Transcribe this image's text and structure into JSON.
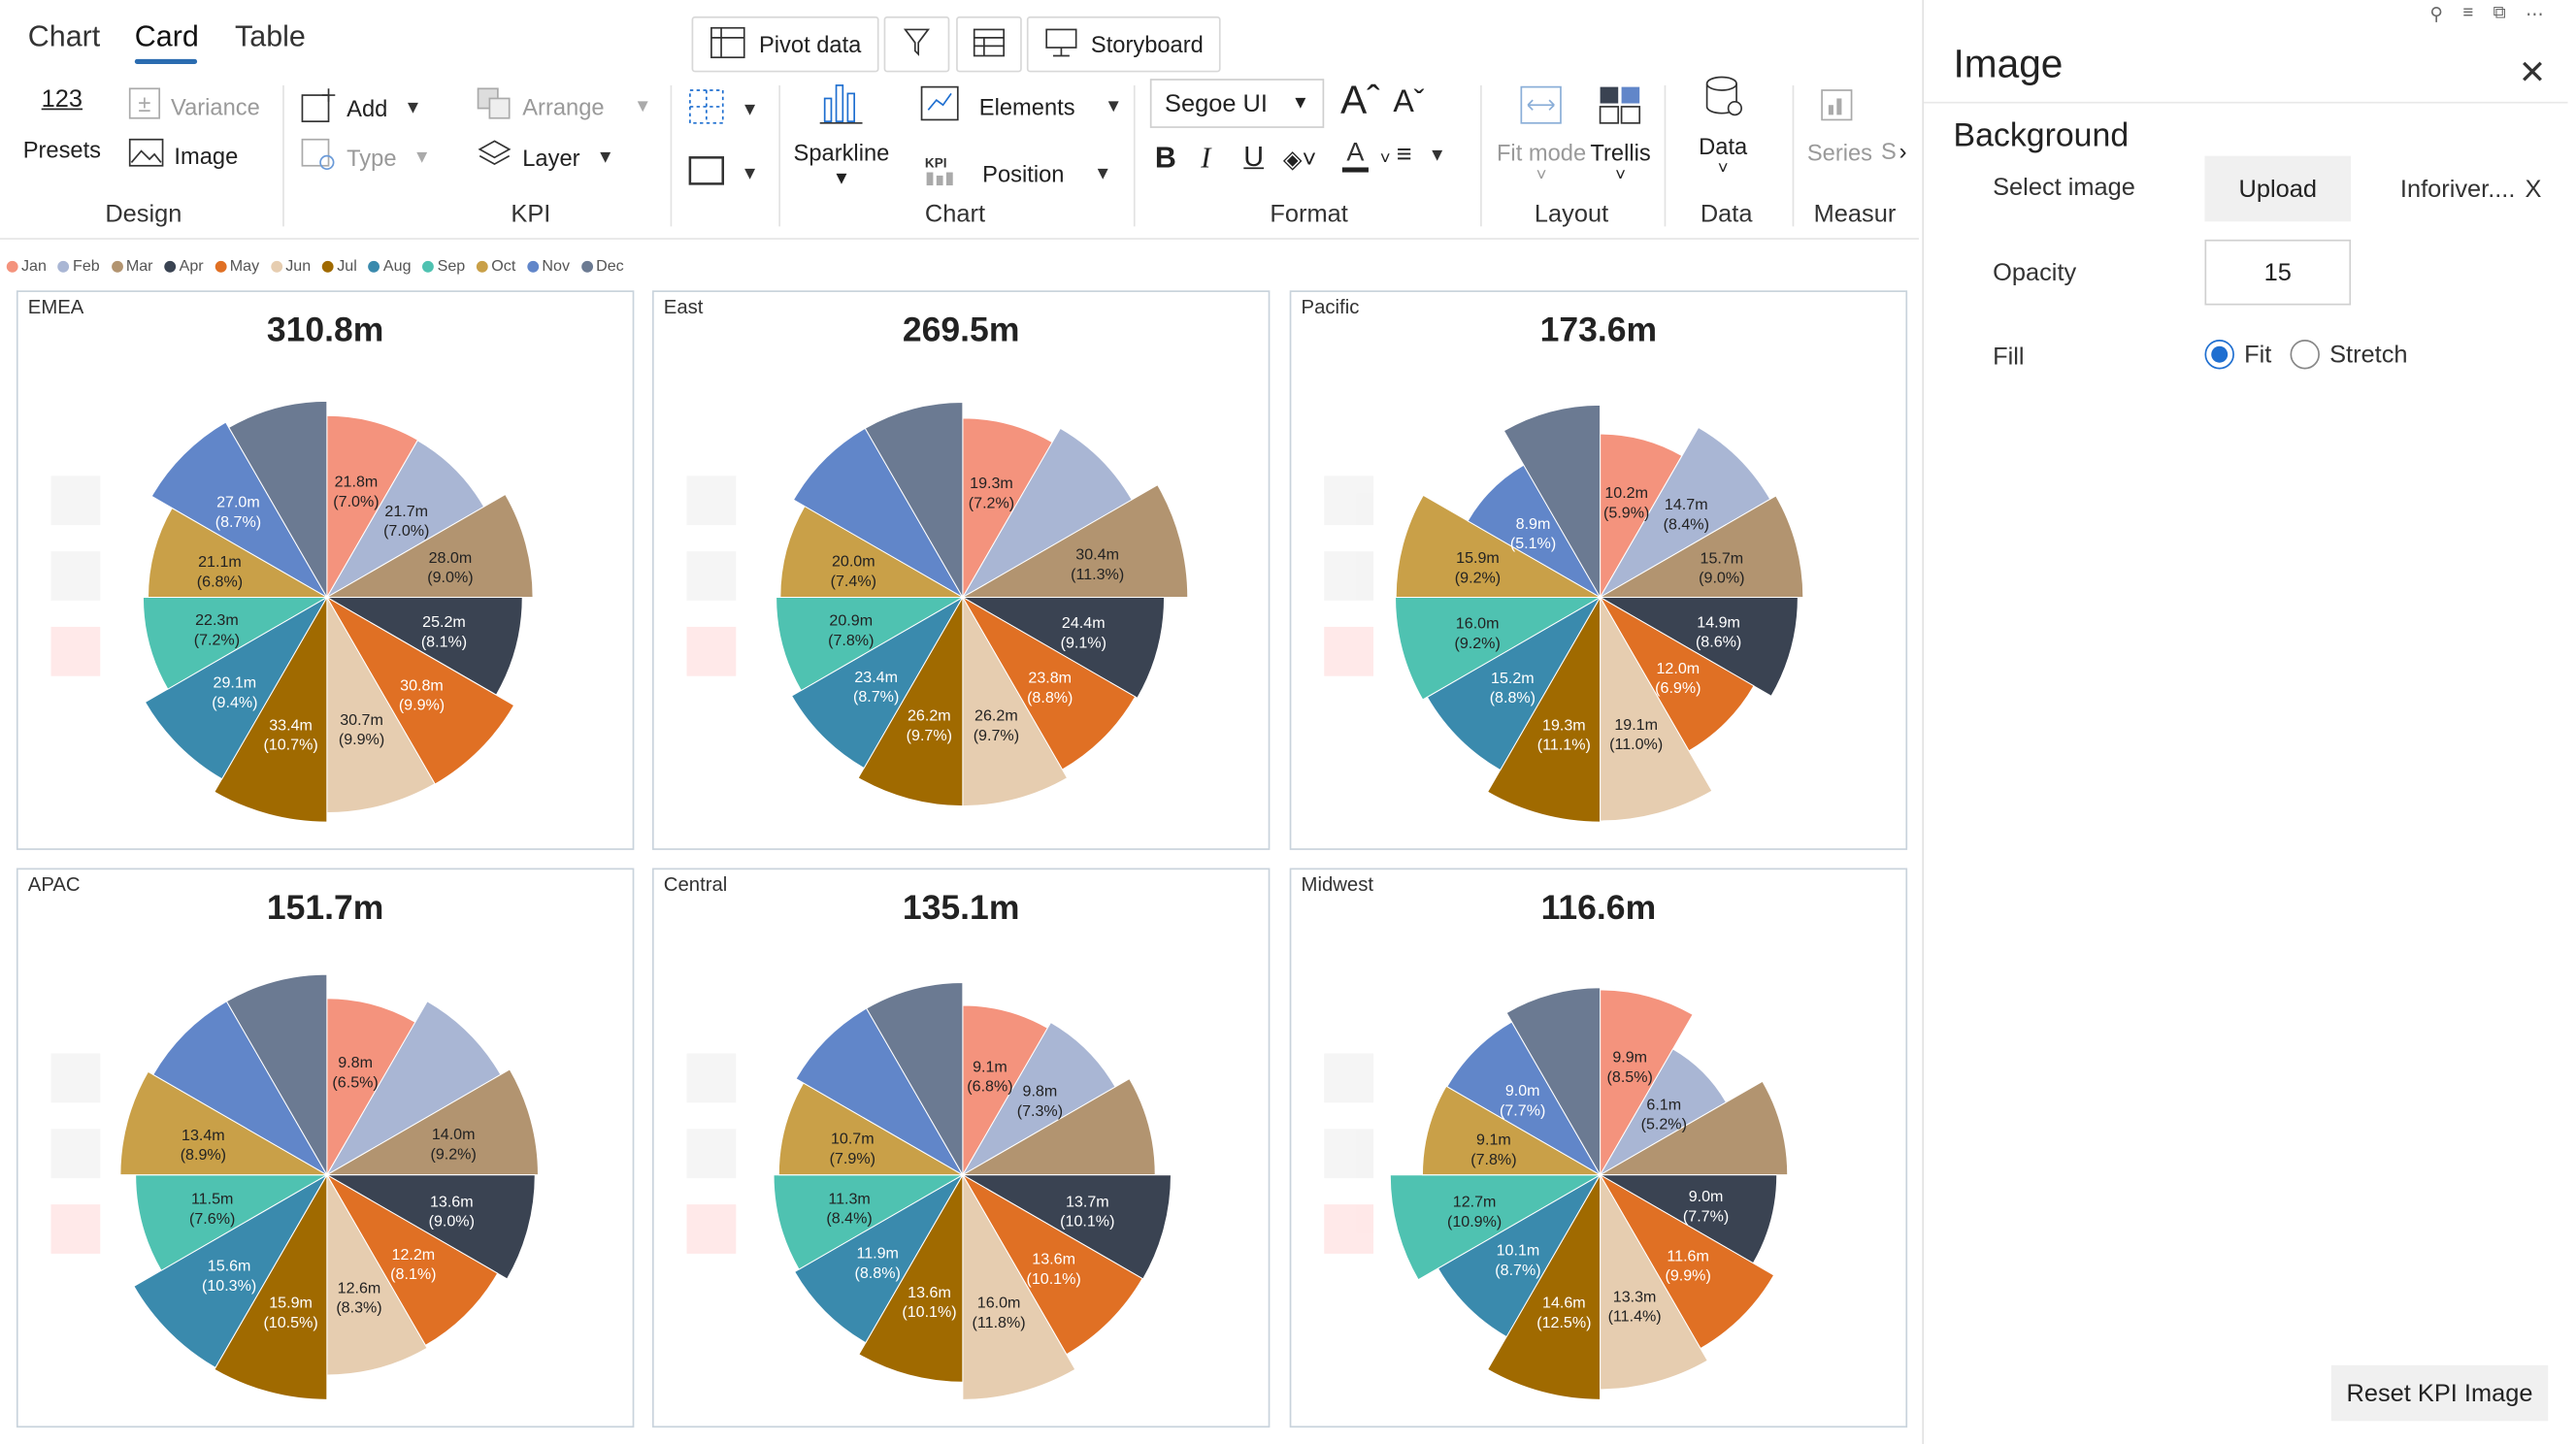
{
  "tabs": [
    {
      "label": "Chart",
      "active": false
    },
    {
      "label": "Card",
      "active": true
    },
    {
      "label": "Table",
      "active": false
    }
  ],
  "toolbar": {
    "pivot_data": "Pivot data",
    "storyboard": "Storyboard",
    "presets_number": "123",
    "presets": "Presets",
    "variance": "Variance",
    "image": "Image",
    "add": "Add",
    "type": "Type",
    "arrange": "Arrange",
    "layer": "Layer",
    "sparkline": "Sparkline",
    "kpi_tag": "KPI",
    "elements": "Elements",
    "position": "Position",
    "font": "Segoe UI",
    "fit_mode": "Fit mode",
    "trellis": "Trellis",
    "data": "Data",
    "series": "Series",
    "s": "S",
    "groups": {
      "design": "Design",
      "kpi": "KPI",
      "chart": "Chart",
      "format": "Format",
      "layout": "Layout",
      "data": "Data",
      "measure": "Measur"
    }
  },
  "legend": [
    "Jan",
    "Feb",
    "Mar",
    "Apr",
    "May",
    "Jun",
    "Jul",
    "Aug",
    "Sep",
    "Oct",
    "Nov",
    "Dec"
  ],
  "colors": [
    "#f4937d",
    "#a9b6d4",
    "#b29470",
    "#3a4352",
    "#e07024",
    "#e6cdb0",
    "#a06a00",
    "#3a8aad",
    "#4fc2b1",
    "#c9a048",
    "#6186c9",
    "#6b7a92"
  ],
  "icons": [
    "pivot-icon",
    "filter-icon",
    "table-icon",
    "storyboard-icon",
    "variance-icon",
    "image-icon",
    "add-icon",
    "type-icon",
    "arrange-icon",
    "layer-icon",
    "sparkline-icon",
    "elements-icon",
    "position-icon",
    "bold-icon",
    "italic-icon",
    "underline-icon",
    "fill-icon",
    "font-color-icon",
    "align-icon",
    "fit-mode-icon",
    "trellis-icon",
    "data-icon",
    "series-icon",
    "close-icon",
    "pin-icon",
    "more-icon"
  ],
  "chart_data": [
    {
      "type": "pie",
      "region": "EMEA",
      "total": "310.8m",
      "categories": [
        "Jan",
        "Feb",
        "Mar",
        "Apr",
        "May",
        "Jun",
        "Jul",
        "Aug",
        "Sep",
        "Oct",
        "Nov",
        "Dec"
      ],
      "values": [
        21.8,
        21.7,
        28.0,
        25.2,
        30.8,
        30.7,
        33.4,
        29.1,
        22.3,
        21.1,
        27.0,
        null
      ],
      "value_labels": [
        "21.8m",
        "21.7m",
        "28.0m",
        "25.2m",
        "30.8m",
        "30.7m",
        "33.4m",
        "29.1m",
        "22.3m",
        "21.1m",
        "27.0m",
        ""
      ],
      "pct_labels": [
        "(7.0%)",
        "(7.0%)",
        "(9.0%)",
        "(8.1%)",
        "(9.9%)",
        "(9.9%)",
        "(10.7%)",
        "(9.4%)",
        "(7.2%)",
        "(6.8%)",
        "(8.7%)",
        ""
      ]
    },
    {
      "type": "pie",
      "region": "East",
      "total": "269.5m",
      "categories": [
        "Jan",
        "Feb",
        "Mar",
        "Apr",
        "May",
        "Jun",
        "Jul",
        "Aug",
        "Sep",
        "Oct",
        "Nov",
        "Dec"
      ],
      "values": [
        19.3,
        null,
        30.4,
        24.4,
        23.8,
        26.2,
        26.2,
        23.4,
        20.9,
        20.0,
        null,
        null
      ],
      "value_labels": [
        "19.3m",
        "",
        "30.4m",
        "24.4m",
        "23.8m",
        "26.2m",
        "26.2m",
        "23.4m",
        "20.9m",
        "20.0m",
        "",
        ""
      ],
      "pct_labels": [
        "(7.2%)",
        "",
        "(11.3%)",
        "(9.1%)",
        "(8.8%)",
        "(9.7%)",
        "(9.7%)",
        "(8.7%)",
        "(7.8%)",
        "(7.4%)",
        "",
        ""
      ]
    },
    {
      "type": "pie",
      "region": "Pacific",
      "total": "173.6m",
      "categories": [
        "Jan",
        "Feb",
        "Mar",
        "Apr",
        "May",
        "Jun",
        "Jul",
        "Aug",
        "Sep",
        "Oct",
        "Nov",
        "Dec"
      ],
      "values": [
        10.2,
        14.7,
        15.7,
        14.9,
        12.0,
        19.1,
        19.3,
        15.2,
        16.0,
        15.9,
        8.9,
        null
      ],
      "value_labels": [
        "10.2m",
        "14.7m",
        "15.7m",
        "14.9m",
        "12.0m",
        "19.1m",
        "19.3m",
        "15.2m",
        "16.0m",
        "15.9m",
        "8.9m",
        ""
      ],
      "pct_labels": [
        "(5.9%)",
        "(8.4%)",
        "(9.0%)",
        "(8.6%)",
        "(6.9%)",
        "(11.0%)",
        "(11.1%)",
        "(8.8%)",
        "(9.2%)",
        "(9.2%)",
        "(5.1%)",
        ""
      ]
    },
    {
      "type": "pie",
      "region": "APAC",
      "total": "151.7m",
      "categories": [
        "Jan",
        "Feb",
        "Mar",
        "Apr",
        "May",
        "Jun",
        "Jul",
        "Aug",
        "Sep",
        "Oct",
        "Nov",
        "Dec"
      ],
      "values": [
        9.8,
        null,
        14.0,
        13.6,
        12.2,
        12.6,
        15.9,
        15.6,
        11.5,
        13.4,
        null,
        null
      ],
      "value_labels": [
        "9.8m",
        "",
        "14.0m",
        "13.6m",
        "12.2m",
        "12.6m",
        "15.9m",
        "15.6m",
        "11.5m",
        "13.4m",
        "",
        ""
      ],
      "pct_labels": [
        "(6.5%)",
        "",
        "(9.2%)",
        "(9.0%)",
        "(8.1%)",
        "(8.3%)",
        "(10.5%)",
        "(10.3%)",
        "(7.6%)",
        "(8.9%)",
        "",
        ""
      ]
    },
    {
      "type": "pie",
      "region": "Central",
      "total": "135.1m",
      "categories": [
        "Jan",
        "Feb",
        "Mar",
        "Apr",
        "May",
        "Jun",
        "Jul",
        "Aug",
        "Sep",
        "Oct",
        "Nov",
        "Dec"
      ],
      "values": [
        9.1,
        9.8,
        null,
        13.7,
        13.6,
        16.0,
        13.6,
        11.9,
        11.3,
        10.7,
        null,
        null
      ],
      "value_labels": [
        "9.1m",
        "9.8m",
        "",
        "13.7m",
        "13.6m",
        "16.0m",
        "13.6m",
        "11.9m",
        "11.3m",
        "10.7m",
        "",
        ""
      ],
      "pct_labels": [
        "(6.8%)",
        "(7.3%)",
        "",
        "(10.1%)",
        "(10.1%)",
        "(11.8%)",
        "(10.1%)",
        "(8.8%)",
        "(8.4%)",
        "(7.9%)",
        "",
        ""
      ]
    },
    {
      "type": "pie",
      "region": "Midwest",
      "total": "116.6m",
      "categories": [
        "Jan",
        "Feb",
        "Mar",
        "Apr",
        "May",
        "Jun",
        "Jul",
        "Aug",
        "Sep",
        "Oct",
        "Nov",
        "Dec"
      ],
      "values": [
        9.9,
        6.1,
        null,
        9.0,
        11.6,
        13.3,
        14.6,
        10.1,
        12.7,
        9.1,
        9.0,
        null
      ],
      "value_labels": [
        "9.9m",
        "6.1m",
        "",
        "9.0m",
        "11.6m",
        "13.3m",
        "14.6m",
        "10.1m",
        "12.7m",
        "9.1m",
        "9.0m",
        ""
      ],
      "pct_labels": [
        "(8.5%)",
        "(5.2%)",
        "",
        "(7.7%)",
        "(9.9%)",
        "(11.4%)",
        "(12.5%)",
        "(8.7%)",
        "(10.9%)",
        "(7.8%)",
        "(7.7%)",
        ""
      ]
    }
  ],
  "panel": {
    "title": "Image",
    "section": "Background",
    "select_image_label": "Select image",
    "upload": "Upload",
    "file_name": "Inforiver....",
    "remove": "X",
    "opacity_label": "Opacity",
    "opacity_value": "15",
    "fill_label": "Fill",
    "fill_options": [
      "Fit",
      "Stretch"
    ],
    "fill_selected": "Fit",
    "reset": "Reset KPI Image"
  }
}
